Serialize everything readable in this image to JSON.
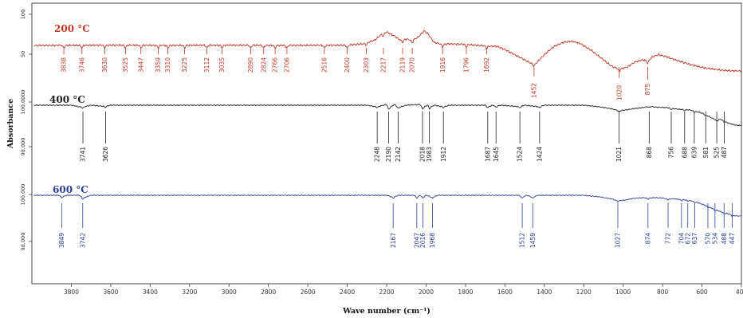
{
  "chart_data": {
    "type": "line",
    "xlabel": "Wave number (cm⁻¹)",
    "ylabel": "Absorbance",
    "xlim": [
      4000,
      400
    ],
    "x_reversed": true,
    "x_ticks": [
      "3800",
      "3600",
      "3400",
      "3200",
      "3000",
      "2800",
      "2600",
      "2400",
      "2200",
      "2000",
      "1800",
      "1600",
      "1400",
      "1200",
      "1000",
      "800",
      "600",
      "400"
    ],
    "series": [
      {
        "name": "200 °C",
        "color": "#c0392b",
        "y_ticks": [
          "100",
          "50"
        ],
        "peaks": [
          3838,
          3746,
          3630,
          3525,
          3447,
          3359,
          3310,
          3225,
          3112,
          3035,
          2890,
          2824,
          2766,
          2706,
          2516,
          2400,
          2303,
          2217,
          2119,
          2070,
          1916,
          1796,
          1692,
          1452,
          1020,
          875
        ],
        "peak_labels": [
          "3838",
          "3746",
          "3630",
          "3525",
          "3447",
          "3359",
          "3310",
          "3225",
          "3112",
          "3035",
          "2890",
          "2824",
          "2766",
          "2706",
          "2516",
          "2400",
          "2303",
          "2217",
          "2119",
          "2070",
          "1916",
          "1796",
          "1692",
          "1452",
          "1020",
          "875"
        ],
        "profile": [
          [
            3990,
            0.35
          ],
          [
            3800,
            0.35
          ],
          [
            3600,
            0.36
          ],
          [
            3400,
            0.35
          ],
          [
            3200,
            0.35
          ],
          [
            3000,
            0.36
          ],
          [
            2800,
            0.35
          ],
          [
            2600,
            0.35
          ],
          [
            2400,
            0.36
          ],
          [
            2320,
            0.42
          ],
          [
            2260,
            0.6
          ],
          [
            2230,
            0.85
          ],
          [
            2200,
            1.0
          ],
          [
            2160,
            0.8
          ],
          [
            2130,
            0.6
          ],
          [
            2100,
            0.65
          ],
          [
            2070,
            0.6
          ],
          [
            2040,
            0.75
          ],
          [
            2010,
            1.05
          ],
          [
            1990,
            0.9
          ],
          [
            1960,
            0.5
          ],
          [
            1920,
            0.4
          ],
          [
            1880,
            0.42
          ],
          [
            1800,
            0.4
          ],
          [
            1700,
            0.32
          ],
          [
            1640,
            0.3
          ],
          [
            1600,
            0.15
          ],
          [
            1550,
            -0.1
          ],
          [
            1500,
            -0.35
          ],
          [
            1460,
            -0.55
          ],
          [
            1440,
            -0.5
          ],
          [
            1400,
            -0.1
          ],
          [
            1350,
            0.3
          ],
          [
            1300,
            0.5
          ],
          [
            1260,
            0.55
          ],
          [
            1220,
            0.45
          ],
          [
            1160,
            0.1
          ],
          [
            1100,
            -0.35
          ],
          [
            1060,
            -0.65
          ],
          [
            1020,
            -0.8
          ],
          [
            980,
            -0.7
          ],
          [
            940,
            -0.45
          ],
          [
            900,
            -0.35
          ],
          [
            875,
            -0.4
          ],
          [
            850,
            -0.2
          ],
          [
            820,
            -0.1
          ],
          [
            780,
            -0.2
          ],
          [
            720,
            -0.4
          ],
          [
            650,
            -0.6
          ],
          [
            580,
            -0.75
          ],
          [
            500,
            -0.85
          ],
          [
            450,
            -0.88
          ],
          [
            400,
            -0.88
          ]
        ],
        "noise": 0.03
      },
      {
        "name": "400 °C",
        "color": "#222222",
        "y_ticks": [
          "100,0000",
          "98,000"
        ],
        "peaks": [
          3741,
          3626,
          2248,
          2190,
          2142,
          2018,
          1983,
          1912,
          1687,
          1645,
          1524,
          1424,
          1021,
          868,
          756,
          688,
          639,
          581,
          525,
          487
        ],
        "peak_labels": [
          "3741",
          "3626",
          "2248",
          "2190",
          "2142",
          "2018",
          "1983",
          "1912",
          "1687",
          "1645",
          "1524",
          "1424",
          "1021",
          "868",
          "756",
          "688",
          "639",
          "581",
          "525",
          "487"
        ],
        "profile": [
          [
            3990,
            0
          ],
          [
            3800,
            0
          ],
          [
            3745,
            -0.25
          ],
          [
            3700,
            0
          ],
          [
            3630,
            -0.15
          ],
          [
            3600,
            0
          ],
          [
            2300,
            0
          ],
          [
            2250,
            -0.2
          ],
          [
            2200,
            0.1
          ],
          [
            2190,
            -0.4
          ],
          [
            2160,
            0.1
          ],
          [
            2140,
            -0.3
          ],
          [
            2100,
            0
          ],
          [
            2030,
            0.1
          ],
          [
            2018,
            -0.35
          ],
          [
            1990,
            0.05
          ],
          [
            1983,
            -0.35
          ],
          [
            1960,
            0
          ],
          [
            1912,
            -0.2
          ],
          [
            1880,
            0
          ],
          [
            1700,
            0
          ],
          [
            1687,
            -0.2
          ],
          [
            1660,
            0
          ],
          [
            1645,
            -0.15
          ],
          [
            1620,
            0
          ],
          [
            1524,
            -0.2
          ],
          [
            1500,
            0
          ],
          [
            1424,
            -0.2
          ],
          [
            1400,
            0
          ],
          [
            1200,
            0
          ],
          [
            1120,
            -0.2
          ],
          [
            1060,
            -0.45
          ],
          [
            1021,
            -0.7
          ],
          [
            990,
            -0.6
          ],
          [
            950,
            -0.45
          ],
          [
            900,
            -0.3
          ],
          [
            868,
            -0.15
          ],
          [
            830,
            -0.25
          ],
          [
            780,
            -0.3
          ],
          [
            756,
            -0.4
          ],
          [
            720,
            -0.5
          ],
          [
            688,
            -0.55
          ],
          [
            660,
            -0.6
          ],
          [
            639,
            -0.75
          ],
          [
            610,
            -0.9
          ],
          [
            581,
            -1.2
          ],
          [
            550,
            -1.6
          ],
          [
            525,
            -1.9
          ],
          [
            505,
            -1.75
          ],
          [
            487,
            -2.0
          ],
          [
            460,
            -2.3
          ],
          [
            430,
            -2.5
          ],
          [
            400,
            -2.55
          ]
        ],
        "noise": 0.04
      },
      {
        "name": "600 °C",
        "color": "#2e3f9a",
        "y_ticks": [
          "100,000",
          "98,000"
        ],
        "peaks": [
          3849,
          3742,
          2167,
          2047,
          2016,
          1968,
          1512,
          1459,
          1027,
          874,
          772,
          704,
          672,
          637,
          570,
          534,
          488,
          447
        ],
        "peak_labels": [
          "3849",
          "3742",
          "2167",
          "2047",
          "2016",
          "1968",
          "1512",
          "1459",
          "1027",
          "874",
          "772",
          "704",
          "672",
          "637",
          "570",
          "534",
          "488",
          "447"
        ],
        "profile": [
          [
            3990,
            0
          ],
          [
            3860,
            0
          ],
          [
            3849,
            -0.2
          ],
          [
            3820,
            0
          ],
          [
            3760,
            0
          ],
          [
            3742,
            -0.35
          ],
          [
            3700,
            0
          ],
          [
            2200,
            0
          ],
          [
            2167,
            -0.25
          ],
          [
            2140,
            0
          ],
          [
            2060,
            0
          ],
          [
            2047,
            -0.25
          ],
          [
            2030,
            0
          ],
          [
            2016,
            -0.25
          ],
          [
            2000,
            0
          ],
          [
            1968,
            -0.25
          ],
          [
            1940,
            0
          ],
          [
            1530,
            0
          ],
          [
            1512,
            -0.25
          ],
          [
            1490,
            0
          ],
          [
            1459,
            -0.25
          ],
          [
            1430,
            0
          ],
          [
            1200,
            0
          ],
          [
            1120,
            -0.2
          ],
          [
            1060,
            -0.45
          ],
          [
            1027,
            -0.7
          ],
          [
            990,
            -0.6
          ],
          [
            950,
            -0.4
          ],
          [
            900,
            -0.3
          ],
          [
            874,
            -0.35
          ],
          [
            840,
            -0.3
          ],
          [
            800,
            -0.35
          ],
          [
            772,
            -0.45
          ],
          [
            740,
            -0.45
          ],
          [
            704,
            -0.55
          ],
          [
            672,
            -0.6
          ],
          [
            637,
            -0.8
          ],
          [
            600,
            -1.1
          ],
          [
            570,
            -1.4
          ],
          [
            534,
            -1.8
          ],
          [
            510,
            -2.0
          ],
          [
            488,
            -2.2
          ],
          [
            470,
            -2.3
          ],
          [
            447,
            -2.5
          ],
          [
            420,
            -2.6
          ],
          [
            400,
            -2.6
          ]
        ],
        "noise": 0.035
      }
    ]
  }
}
